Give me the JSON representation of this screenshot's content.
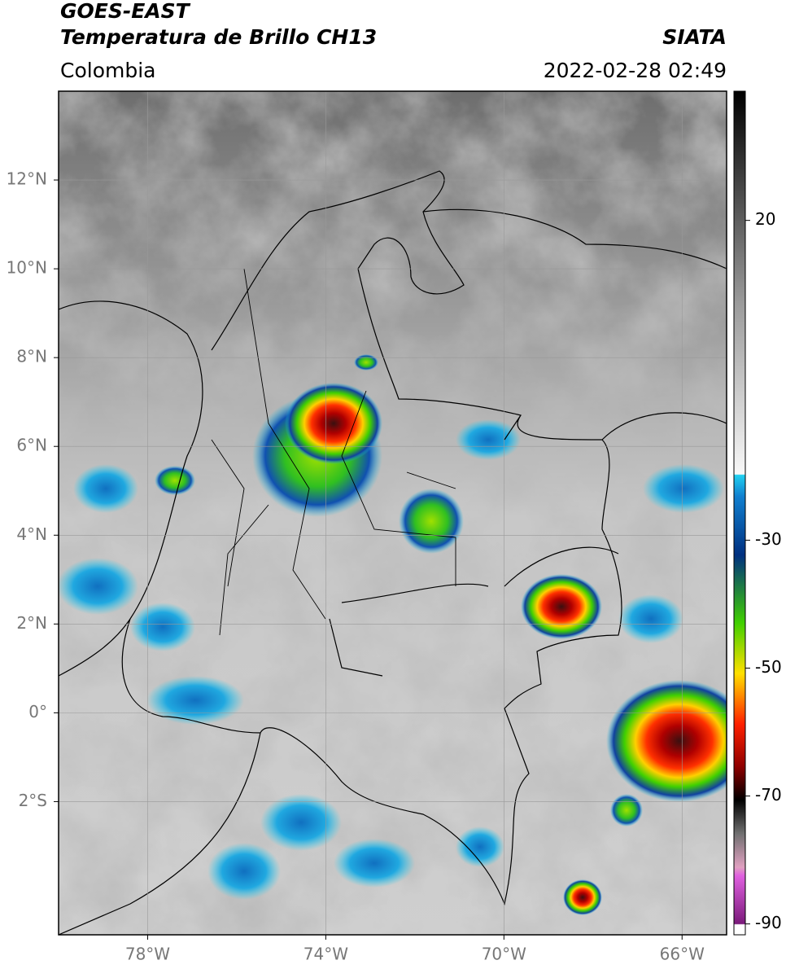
{
  "header": {
    "title": "GOES-EAST",
    "subtitle": "Temperatura de Brillo CH13",
    "source": "SIATA",
    "region": "Colombia",
    "datetime": "2022-02-28 02:49"
  },
  "map": {
    "xlim": [
      -80,
      -65
    ],
    "ylim": [
      -5,
      14
    ],
    "grid": true,
    "xticks": [
      {
        "value": -78,
        "label": "78°W"
      },
      {
        "value": -74,
        "label": "74°W"
      },
      {
        "value": -70,
        "label": "70°W"
      },
      {
        "value": -66,
        "label": "66°W"
      }
    ],
    "yticks": [
      {
        "value": 12,
        "label": "12°N"
      },
      {
        "value": 10,
        "label": "10°N"
      },
      {
        "value": 8,
        "label": "8°N"
      },
      {
        "value": 6,
        "label": "6°N"
      },
      {
        "value": 4,
        "label": "4°N"
      },
      {
        "value": 2,
        "label": "2°N"
      },
      {
        "value": 0,
        "label": "0°"
      },
      {
        "value": -2,
        "label": "2°S"
      }
    ]
  },
  "colorbar": {
    "lim": [
      -91.7,
      40.2
    ],
    "ticks": [
      20,
      -30,
      -50,
      -70,
      -90
    ]
  }
}
